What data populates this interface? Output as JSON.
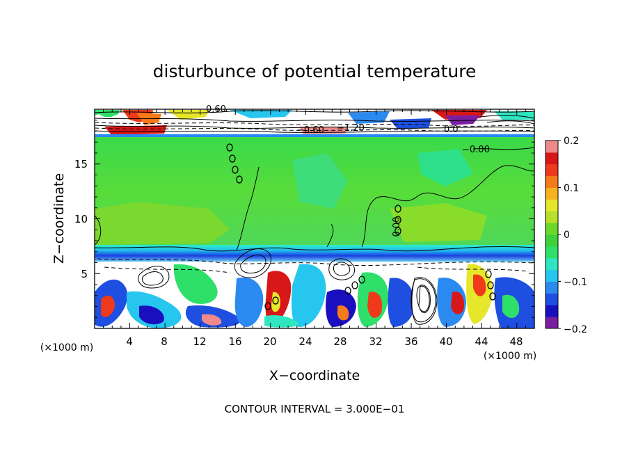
{
  "chart_data": {
    "type": "heatmap",
    "title": "disturbunce of potential temperature",
    "xlabel": "X−coordinate",
    "ylabel": "Z−coordinate",
    "x_unit": "(×1000 m)",
    "y_unit": "(×1000 m)",
    "xlim": [
      0,
      50
    ],
    "ylim": [
      0,
      20
    ],
    "x_ticks": [
      4,
      8,
      12,
      16,
      20,
      24,
      28,
      32,
      36,
      40,
      44,
      48
    ],
    "y_ticks": [
      5,
      10,
      15
    ],
    "footer": "CONTOUR INTERVAL = 3.000E−01",
    "colorbar": {
      "min": -0.2,
      "max": 0.2,
      "tick_values": [
        0.2,
        0.1,
        0,
        -0.1,
        -0.2
      ],
      "tick_labels": [
        "0.2",
        "0.1",
        "0",
        "−0.1",
        "−0.2"
      ],
      "colors": [
        "#7a1fa2",
        "#1a0fbf",
        "#1e4fe0",
        "#2a8af0",
        "#26c6ef",
        "#2fe6c0",
        "#2ee06a",
        "#3ed23a",
        "#6ad72a",
        "#b8e02a",
        "#e6e62a",
        "#f5b21e",
        "#f57a1a",
        "#ee3a1a",
        "#d81818",
        "#f08a8a"
      ]
    },
    "contour_labels": [
      {
        "text": "0.60",
        "x": 13.8,
        "z": 19.2
      },
      {
        "text": "−0.60",
        "x": 23.3,
        "z": 17.9
      },
      {
        "text": "−1.20",
        "x": 28.4,
        "z": 18.2
      },
      {
        "text": "0.0",
        "x": 40.0,
        "z": 18.0
      },
      {
        "text": "−0.00",
        "x": 44.0,
        "z": 16.1
      },
      {
        "text": "0.00",
        "x": 35.1,
        "z": 9.4
      }
    ],
    "annotations": [
      "positive disturbance band at model top (z ≈ 17.5–20)",
      "near-zero (green) region between z ≈ 7 and z ≈ 17.5",
      "negative (blue) layer near z ≈ 6.5",
      "mixed positive/negative eddies below z ≈ 6"
    ]
  }
}
